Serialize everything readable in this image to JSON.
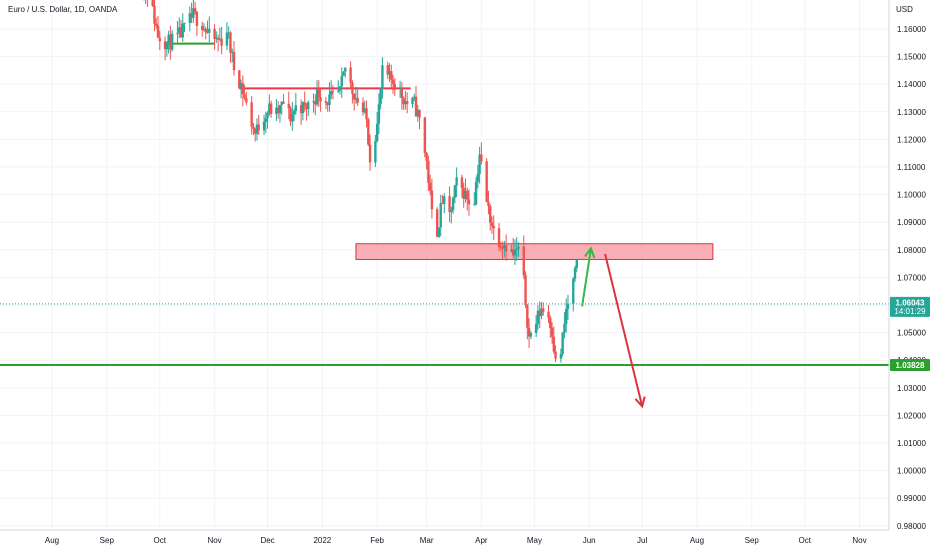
{
  "header": {
    "title": "Euro / U.S. Dollar, 1D, OANDA",
    "currency": "USD"
  },
  "colors": {
    "up": "#26a69a",
    "down": "#ef5350",
    "grid": "#f0f3fa",
    "support_line": "#2ca02c",
    "resistance_line": "#f23645",
    "zone_fill": "#f7a1a8",
    "zone_stroke": "#e0303d",
    "last_price_line": "#26a69a",
    "arrow_up": "#33b84a",
    "arrow_down": "#e0303d",
    "price_label_bg": "#26a69a",
    "support_label_bg": "#2ca02c"
  },
  "chart_data": {
    "type": "candlestick",
    "title": "Euro / U.S. Dollar, 1D, OANDA",
    "ylabel": "USD",
    "ylim": [
      0.98,
      1.168
    ],
    "y_ticks": [
      "1.16000",
      "1.15000",
      "1.14000",
      "1.13000",
      "1.12000",
      "1.11000",
      "1.10000",
      "1.09000",
      "1.08000",
      "1.07000",
      "1.06000",
      "1.05000",
      "1.04000",
      "1.03000",
      "1.02000",
      "1.01000",
      "1.00000",
      "0.99000",
      "0.98000"
    ],
    "x_ticks": [
      {
        "label": "Aug",
        "date": "2021-08-01"
      },
      {
        "label": "Sep",
        "date": "2021-09-01"
      },
      {
        "label": "Oct",
        "date": "2021-10-01"
      },
      {
        "label": "Nov",
        "date": "2021-11-01"
      },
      {
        "label": "Dec",
        "date": "2021-12-01"
      },
      {
        "label": "2022",
        "date": "2022-01-01"
      },
      {
        "label": "Feb",
        "date": "2022-02-01"
      },
      {
        "label": "Mar",
        "date": "2022-03-01"
      },
      {
        "label": "Apr",
        "date": "2022-04-01"
      },
      {
        "label": "May",
        "date": "2022-05-01"
      },
      {
        "label": "Jun",
        "date": "2022-06-01"
      },
      {
        "label": "Jul",
        "date": "2022-07-01"
      },
      {
        "label": "Aug",
        "date": "2022-08-01"
      },
      {
        "label": "Sep",
        "date": "2022-09-01"
      },
      {
        "label": "Oct",
        "date": "2022-10-01"
      },
      {
        "label": "Nov",
        "date": "2022-11-01"
      }
    ],
    "price_path": [
      [
        "2021-09-20",
        1.176
      ],
      [
        "2021-09-25",
        1.172
      ],
      [
        "2021-09-30",
        1.158
      ],
      [
        "2021-10-05",
        1.155
      ],
      [
        "2021-10-10",
        1.156
      ],
      [
        "2021-10-15",
        1.16
      ],
      [
        "2021-10-20",
        1.165
      ],
      [
        "2021-10-25",
        1.162
      ],
      [
        "2021-10-30",
        1.156
      ],
      [
        "2021-11-05",
        1.156
      ],
      [
        "2021-11-08",
        1.16
      ],
      [
        "2021-11-12",
        1.146
      ],
      [
        "2021-11-16",
        1.14
      ],
      [
        "2021-11-20",
        1.13
      ],
      [
        "2021-11-24",
        1.122
      ],
      [
        "2021-11-28",
        1.128
      ],
      [
        "2021-12-02",
        1.131
      ],
      [
        "2021-12-06",
        1.129
      ],
      [
        "2021-12-10",
        1.133
      ],
      [
        "2021-12-14",
        1.128
      ],
      [
        "2021-12-18",
        1.133
      ],
      [
        "2021-12-22",
        1.131
      ],
      [
        "2021-12-26",
        1.134
      ],
      [
        "2021-12-30",
        1.137
      ],
      [
        "2022-01-03",
        1.134
      ],
      [
        "2022-01-07",
        1.135
      ],
      [
        "2022-01-11",
        1.137
      ],
      [
        "2022-01-14",
        1.146
      ],
      [
        "2022-01-18",
        1.138
      ],
      [
        "2022-01-22",
        1.133
      ],
      [
        "2022-01-26",
        1.127
      ],
      [
        "2022-01-28",
        1.114
      ],
      [
        "2022-02-01",
        1.125
      ],
      [
        "2022-02-04",
        1.144
      ],
      [
        "2022-02-08",
        1.142
      ],
      [
        "2022-02-11",
        1.141
      ],
      [
        "2022-02-15",
        1.136
      ],
      [
        "2022-02-18",
        1.133
      ],
      [
        "2022-02-22",
        1.133
      ],
      [
        "2022-02-25",
        1.127
      ],
      [
        "2022-03-01",
        1.112
      ],
      [
        "2022-03-04",
        1.093
      ],
      [
        "2022-03-07",
        1.087
      ],
      [
        "2022-03-10",
        1.098
      ],
      [
        "2022-03-14",
        1.092
      ],
      [
        "2022-03-18",
        1.104
      ],
      [
        "2022-03-22",
        1.101
      ],
      [
        "2022-03-25",
        1.098
      ],
      [
        "2022-03-28",
        1.099
      ],
      [
        "2022-03-31",
        1.115
      ],
      [
        "2022-04-04",
        1.097
      ],
      [
        "2022-04-08",
        1.087
      ],
      [
        "2022-04-12",
        1.083
      ],
      [
        "2022-04-15",
        1.082
      ],
      [
        "2022-04-19",
        1.078
      ],
      [
        "2022-04-22",
        1.08
      ],
      [
        "2022-04-25",
        1.068
      ],
      [
        "2022-04-28",
        1.048
      ],
      [
        "2022-05-02",
        1.054
      ],
      [
        "2022-05-05",
        1.059
      ],
      [
        "2022-05-09",
        1.056
      ],
      [
        "2022-05-11",
        1.051
      ],
      [
        "2022-05-13",
        1.039
      ],
      [
        "2022-05-16",
        1.043
      ],
      [
        "2022-05-19",
        1.058
      ],
      [
        "2022-05-23",
        1.068
      ],
      [
        "2022-05-25",
        1.074
      ]
    ],
    "horizontal_lines": [
      {
        "name": "support",
        "price": 1.03828,
        "start": "2021-07-01",
        "end": "2022-11-30"
      },
      {
        "name": "resistance-1",
        "price": 1.1385,
        "start": "2021-11-15",
        "end": "2022-02-20"
      },
      {
        "name": "support-oct",
        "price": 1.1547,
        "start": "2021-10-05",
        "end": "2021-11-01"
      }
    ],
    "zone": {
      "top": 1.0822,
      "bottom": 1.0765,
      "start": "2022-01-20",
      "end": "2022-08-10"
    },
    "arrows": [
      {
        "name": "up-arrow",
        "from": [
          "2022-05-28",
          1.0595
        ],
        "to": [
          "2022-06-02",
          1.0805
        ]
      },
      {
        "name": "down-arrow",
        "from": [
          "2022-06-10",
          1.0785
        ],
        "to": [
          "2022-07-01",
          1.0233
        ]
      }
    ],
    "last_price": {
      "value": "1.06043",
      "countdown": "14:01:29",
      "price": 1.06043
    },
    "support_label": {
      "value": "1.03828",
      "price": 1.03828
    }
  }
}
